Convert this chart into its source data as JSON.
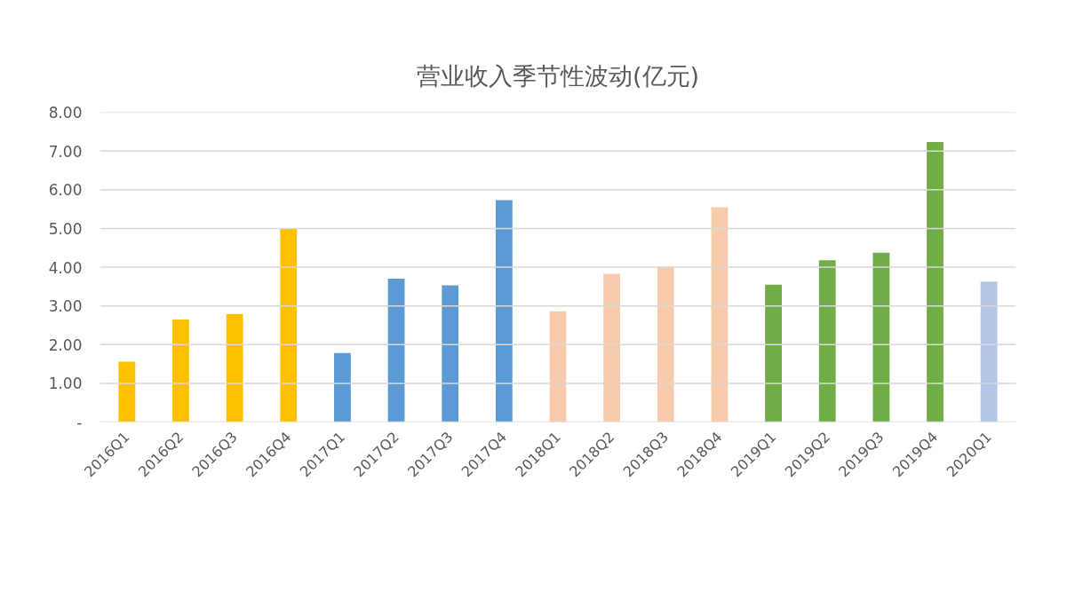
{
  "chart_data": {
    "type": "bar",
    "title": "营业收入季节性波动(亿元)",
    "categories": [
      "2016Q1",
      "2016Q2",
      "2016Q3",
      "2016Q4",
      "2017Q1",
      "2017Q2",
      "2017Q3",
      "2017Q4",
      "2018Q1",
      "2018Q2",
      "2018Q3",
      "2018Q4",
      "2019Q1",
      "2019Q2",
      "2019Q3",
      "2019Q4",
      "2020Q1"
    ],
    "values": [
      1.56,
      2.65,
      2.79,
      5.0,
      1.78,
      3.7,
      3.53,
      5.73,
      2.86,
      3.83,
      4.01,
      5.55,
      3.55,
      4.18,
      4.37,
      7.23,
      3.63
    ],
    "colors": [
      "#ffc000",
      "#ffc000",
      "#ffc000",
      "#ffc000",
      "#5b9bd5",
      "#5b9bd5",
      "#5b9bd5",
      "#5b9bd5",
      "#f8cbad",
      "#f8cbad",
      "#f8cbad",
      "#f8cbad",
      "#70ad47",
      "#70ad47",
      "#70ad47",
      "#70ad47",
      "#b4c7e7"
    ],
    "ylim": [
      0,
      8
    ],
    "yticks": [
      {
        "value": 0,
        "label": "-"
      },
      {
        "value": 1,
        "label": "1.00"
      },
      {
        "value": 2,
        "label": "2.00"
      },
      {
        "value": 3,
        "label": "3.00"
      },
      {
        "value": 4,
        "label": "4.00"
      },
      {
        "value": 5,
        "label": "5.00"
      },
      {
        "value": 6,
        "label": "6.00"
      },
      {
        "value": 7,
        "label": "7.00"
      },
      {
        "value": 8,
        "label": "8.00"
      }
    ],
    "grid": "y"
  }
}
